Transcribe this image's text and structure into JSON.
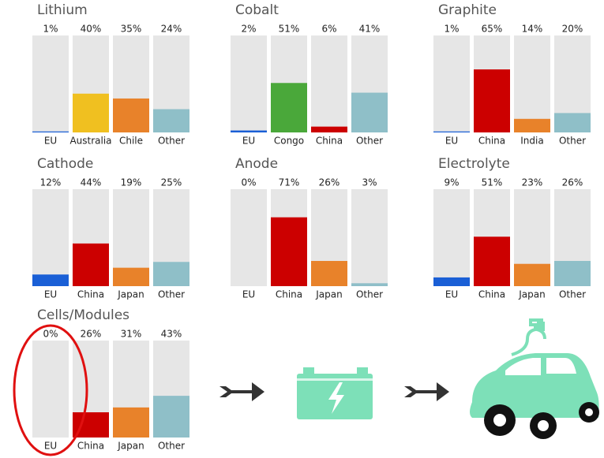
{
  "chart_data": [
    {
      "type": "bar",
      "title": "Lithium",
      "categories": [
        "EU",
        "Australia",
        "Chile",
        "Other"
      ],
      "values": [
        1,
        40,
        35,
        24
      ],
      "value_labels": [
        "1%",
        "40%",
        "35%",
        "24%"
      ],
      "colors": [
        "#1a5fd6",
        "#f0c020",
        "#e8822a",
        "#8fbfc8"
      ],
      "ylim": [
        0,
        100
      ]
    },
    {
      "type": "bar",
      "title": "Cobalt",
      "categories": [
        "EU",
        "Congo",
        "China",
        "Other"
      ],
      "values": [
        2,
        51,
        6,
        41
      ],
      "value_labels": [
        "2%",
        "51%",
        "6%",
        "41%"
      ],
      "colors": [
        "#1a5fd6",
        "#4aa83a",
        "#cc0000",
        "#8fbfc8"
      ],
      "ylim": [
        0,
        100
      ]
    },
    {
      "type": "bar",
      "title": "Graphite",
      "categories": [
        "EU",
        "China",
        "India",
        "Other"
      ],
      "values": [
        1,
        65,
        14,
        20
      ],
      "value_labels": [
        "1%",
        "65%",
        "14%",
        "20%"
      ],
      "colors": [
        "#1a5fd6",
        "#cc0000",
        "#e8822a",
        "#8fbfc8"
      ],
      "ylim": [
        0,
        100
      ]
    },
    {
      "type": "bar",
      "title": "Cathode",
      "categories": [
        "EU",
        "China",
        "Japan",
        "Other"
      ],
      "values": [
        12,
        44,
        19,
        25
      ],
      "value_labels": [
        "12%",
        "44%",
        "19%",
        "25%"
      ],
      "colors": [
        "#1a5fd6",
        "#cc0000",
        "#e8822a",
        "#8fbfc8"
      ],
      "ylim": [
        0,
        100
      ]
    },
    {
      "type": "bar",
      "title": "Anode",
      "categories": [
        "EU",
        "China",
        "Japan",
        "Other"
      ],
      "values": [
        0,
        71,
        26,
        3
      ],
      "value_labels": [
        "0%",
        "71%",
        "26%",
        "3%"
      ],
      "colors": [
        "#1a5fd6",
        "#cc0000",
        "#e8822a",
        "#8fbfc8"
      ],
      "ylim": [
        0,
        100
      ]
    },
    {
      "type": "bar",
      "title": "Electrolyte",
      "categories": [
        "EU",
        "China",
        "Japan",
        "Other"
      ],
      "values": [
        9,
        51,
        23,
        26
      ],
      "value_labels": [
        "9%",
        "51%",
        "23%",
        "26%"
      ],
      "colors": [
        "#1a5fd6",
        "#cc0000",
        "#e8822a",
        "#8fbfc8"
      ],
      "ylim": [
        0,
        100
      ]
    },
    {
      "type": "bar",
      "title": "Cells/Modules",
      "categories": [
        "EU",
        "China",
        "Japan",
        "Other"
      ],
      "values": [
        0,
        26,
        31,
        43
      ],
      "value_labels": [
        "0%",
        "26%",
        "31%",
        "43%"
      ],
      "colors": [
        "#1a5fd6",
        "#cc0000",
        "#e8822a",
        "#8fbfc8"
      ],
      "ylim": [
        0,
        100
      ]
    }
  ]
}
